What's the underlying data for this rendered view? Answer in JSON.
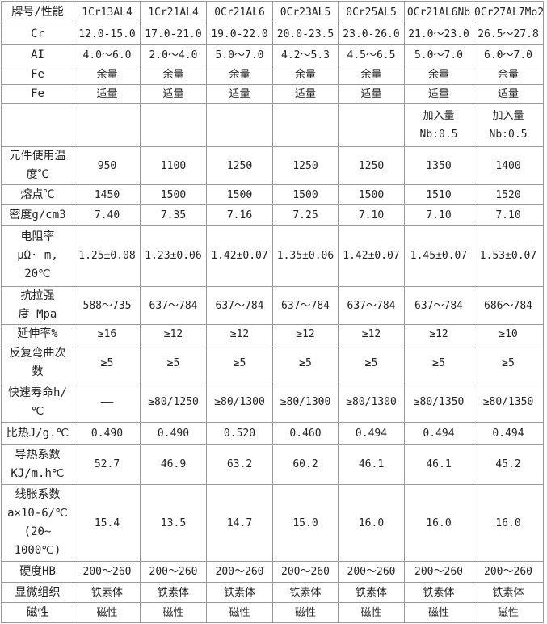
{
  "header": [
    "牌号/性能",
    "1Cr13AL4",
    "1Cr21AL4",
    "0Cr21AL6",
    "0Cr23AL5",
    "0Cr25AL5",
    "0Cr21AL6Nb",
    "0Cr27AL7Mo2"
  ],
  "rows": [
    {
      "key": "cr",
      "cells": [
        "Cr",
        "12.0-15.0",
        "17.0-21.0",
        "19.0-22.0",
        "20.0-23.5",
        "23.0-26.0",
        "21.0～23.0",
        "26.5～27.8"
      ]
    },
    {
      "key": "al",
      "cells": [
        "AI",
        "4.0～6.0",
        "2.0～4.0",
        "5.0～7.0",
        "4.2～5.3",
        "4.5～6.5",
        "5.0～7.0",
        "6.0～7.0"
      ]
    },
    {
      "key": "fe-balance",
      "cells": [
        "Fe",
        "余量",
        "余量",
        "余量",
        "余量",
        "余量",
        "余量",
        "余量"
      ]
    },
    {
      "key": "fe-proper",
      "cells": [
        "Fe",
        "适量",
        "适量",
        "适量",
        "适量",
        "适量",
        "适量",
        "适量"
      ]
    },
    {
      "key": "nb",
      "cells": [
        "",
        "",
        "",
        "",
        "",
        "",
        "加入量\nNb:0.5",
        "加入量\nNb:0.5"
      ]
    },
    {
      "key": "max-temp",
      "cells": [
        "元件使用温\n度℃",
        "950",
        "1100",
        "1250",
        "1250",
        "1250",
        "1350",
        "1400"
      ]
    },
    {
      "key": "melting-point",
      "cells": [
        "熔点℃",
        "1450",
        "1500",
        "1500",
        "1500",
        "1500",
        "1510",
        "1520"
      ]
    },
    {
      "key": "density",
      "cells": [
        "密度g/cm3",
        "7.40",
        "7.35",
        "7.16",
        "7.25",
        "7.10",
        "7.10",
        "7.10"
      ]
    },
    {
      "key": "resistivity",
      "cells": [
        "电阻率\nμΩ· m,\n20℃",
        "1.25±0.08",
        "1.23±0.06",
        "1.42±0.07",
        "1.35±0.06",
        "1.42±0.07",
        "1.45±0.07",
        "1.53±0.07"
      ]
    },
    {
      "key": "tensile",
      "cells": [
        "抗拉强\n度 Mpa",
        "588～735",
        "637～784",
        "637～784",
        "637～784",
        "637～784",
        "637～784",
        "686～784"
      ]
    },
    {
      "key": "elongation",
      "cells": [
        "延伸率%",
        "≥16",
        "≥12",
        "≥12",
        "≥12",
        "≥12",
        "≥12",
        "≥10"
      ]
    },
    {
      "key": "bending",
      "cells": [
        "反复弯曲次\n数",
        "≥5",
        "≥5",
        "≥5",
        "≥5",
        "≥5",
        "≥5",
        "≥5"
      ]
    },
    {
      "key": "life",
      "cells": [
        "快速寿命h/\n℃",
        "——",
        "≥80/1250",
        "≥80/1300",
        "≥80/1300",
        "≥80/1300",
        "≥80/1350",
        "≥80/1350"
      ]
    },
    {
      "key": "specific-heat",
      "cells": [
        "比热J/g.℃",
        "0.490",
        "0.490",
        "0.520",
        "0.460",
        "0.494",
        "0.494",
        "0.494"
      ]
    },
    {
      "key": "conductivity",
      "cells": [
        "导热系数\nKJ/m.h℃",
        "52.7",
        "46.9",
        "63.2",
        "60.2",
        "46.1",
        "46.1",
        "45.2"
      ]
    },
    {
      "key": "expansion",
      "cells": [
        "线胀系数\na×10-6/℃\n(20~\n1000℃)",
        "15.4",
        "13.5",
        "14.7",
        "15.0",
        "16.0",
        "16.0",
        "16.0"
      ]
    },
    {
      "key": "hardness",
      "cells": [
        "硬度HB",
        "200～260",
        "200～260",
        "200～260",
        "200～260",
        "200～260",
        "200～260",
        "200～260"
      ]
    },
    {
      "key": "microstructure",
      "cells": [
        "显微组织",
        "铁素体",
        "铁素体",
        "铁素体",
        "铁素体",
        "铁素体",
        "铁素体",
        "铁素体"
      ]
    },
    {
      "key": "magnetism",
      "cells": [
        "磁性",
        "磁性",
        "磁性",
        "磁性",
        "磁性",
        "磁性",
        "磁性",
        "磁性"
      ]
    }
  ]
}
